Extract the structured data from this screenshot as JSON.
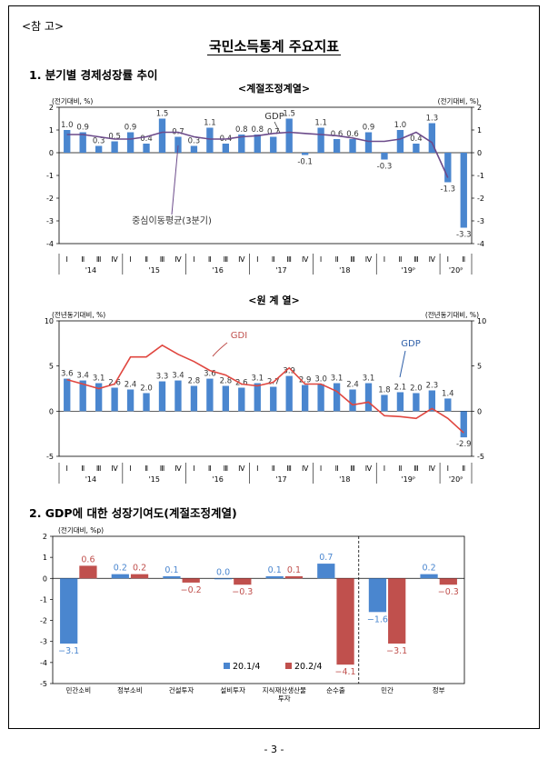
{
  "header": {
    "reference_tag": "<참 고>",
    "title": "국민소득통계 주요지표",
    "page_number": "- 3 -"
  },
  "sections": {
    "s1_title": "1. 분기별 경제성장률 추이",
    "s1_sub1": "<계절조정계열>",
    "s1_sub2": "<원 계 열>",
    "s2_title": "2. GDP에 대한 성장기여도(계절조정계열)"
  },
  "colors": {
    "bar_blue": "#4a86cf",
    "bar_red": "#c0504d",
    "line_purple": "#6b4a8a",
    "line_red": "#e0463f"
  },
  "chart_data": [
    {
      "type": "bar",
      "title": "<계절조정계열>",
      "unit_left": "(전기대비, %)",
      "unit_right": "(전기대비, %)",
      "ylim": [
        -4,
        2
      ],
      "yticks": [
        -4,
        -3,
        -2,
        -1,
        0,
        1,
        2
      ],
      "quarters": [
        "Ⅰ",
        "Ⅱ",
        "Ⅲ",
        "Ⅳ",
        "Ⅰ",
        "Ⅱ",
        "Ⅲ",
        "Ⅳ",
        "Ⅰ",
        "Ⅱ",
        "Ⅲ",
        "Ⅳ",
        "Ⅰ",
        "Ⅱ",
        "Ⅲ",
        "Ⅳ",
        "Ⅰ",
        "Ⅱ",
        "Ⅲ",
        "Ⅳ",
        "Ⅰ",
        "Ⅱ",
        "Ⅲ",
        "Ⅳ",
        "Ⅰ",
        "Ⅱ"
      ],
      "years": [
        "'14",
        "'15",
        "'16",
        "'17",
        "'18",
        "'19ᴾ",
        "'20ᴾ"
      ],
      "series": [
        {
          "name": "GDP",
          "type": "bar",
          "values": [
            1.0,
            0.9,
            0.3,
            0.5,
            0.9,
            0.4,
            1.5,
            0.7,
            0.3,
            1.1,
            0.4,
            0.8,
            0.8,
            0.7,
            1.5,
            -0.1,
            1.1,
            0.6,
            0.6,
            0.9,
            -0.3,
            1.0,
            0.4,
            1.3,
            -1.3,
            -3.3
          ],
          "labels": [
            "1.0",
            "0.9",
            "0.3",
            "0.5",
            "0.9",
            "0.4",
            "1.5",
            "0.7",
            "0.3",
            "1.1",
            "0.4",
            "0.8",
            "0.8",
            "0.7",
            "1.5",
            "-0.1",
            "1.1",
            "0.6",
            "0.6",
            "0.9",
            "-0.3",
            "1.0",
            "0.4",
            "1.3",
            "-1.3",
            "-3.3"
          ]
        },
        {
          "name": "중심이동평균(3분기)",
          "type": "line",
          "values": [
            0.8,
            0.8,
            0.7,
            0.6,
            0.6,
            0.7,
            0.9,
            0.9,
            0.7,
            0.6,
            0.6,
            0.7,
            0.75,
            0.85,
            0.9,
            0.85,
            0.8,
            0.75,
            0.65,
            0.5,
            0.5,
            0.6,
            0.9,
            0.45,
            -1.1,
            null
          ]
        }
      ],
      "annotations": [
        "GDP",
        "중심이동평균(3분기)"
      ]
    },
    {
      "type": "bar",
      "title": "<원 계 열>",
      "unit_left": "(전년동기대비, %)",
      "unit_right": "(전년동기대비, %)",
      "ylim": [
        -5,
        10
      ],
      "yticks": [
        -5,
        0,
        5,
        10
      ],
      "series": [
        {
          "name": "GDP",
          "type": "bar",
          "values": [
            3.6,
            3.4,
            3.1,
            2.6,
            2.4,
            2.0,
            3.3,
            3.4,
            2.8,
            3.6,
            2.8,
            2.6,
            3.1,
            2.7,
            3.9,
            2.9,
            3.0,
            3.1,
            2.4,
            3.1,
            1.8,
            2.1,
            2.0,
            2.3,
            1.4,
            -2.9
          ],
          "labels": [
            "3.6",
            "3.4",
            "3.1",
            "2.6",
            "2.4",
            "2.0",
            "3.3",
            "3.4",
            "2.8",
            "3.6",
            "2.8",
            "2.6",
            "3.1",
            "2.7",
            "3.9",
            "2.9",
            "3.0",
            "3.1",
            "2.4",
            "3.1",
            "1.8",
            "2.1",
            "2.0",
            "2.3",
            "1.4",
            "-2.9"
          ]
        },
        {
          "name": "GDI",
          "type": "line",
          "values": [
            3.5,
            3.0,
            2.5,
            3.0,
            6.0,
            6.0,
            7.3,
            6.3,
            5.5,
            4.5,
            4.0,
            3.0,
            2.8,
            3.2,
            4.8,
            3.0,
            3.0,
            2.2,
            0.7,
            1.0,
            -0.5,
            -0.6,
            -0.8,
            0.3,
            -0.8,
            -2.4
          ]
        }
      ],
      "annotations": [
        "GDI",
        "GDP"
      ]
    },
    {
      "type": "bar",
      "title": "2. GDP에 대한 성장기여도(계절조정계열)",
      "unit_left": "(전기대비, %p)",
      "ylim": [
        -5,
        2
      ],
      "yticks": [
        -5,
        -4,
        -3,
        -2,
        -1,
        0,
        1,
        2
      ],
      "categories": [
        "민간소비",
        "정부소비",
        "건설투자",
        "설비투자",
        "지식재산생산물투자",
        "순수출",
        "민간",
        "정부"
      ],
      "categories_display": [
        [
          "민간소비"
        ],
        [
          "정부소비"
        ],
        [
          "건설투자"
        ],
        [
          "설비투자"
        ],
        [
          "지식재산생산물",
          "투자"
        ],
        [
          "순수출"
        ],
        [
          "민간"
        ],
        [
          "정부"
        ]
      ],
      "series": [
        {
          "name": "20.1/4",
          "values": [
            -3.1,
            0.2,
            0.1,
            0.0,
            0.1,
            0.7,
            -1.6,
            0.2
          ],
          "labels": [
            "−3.1",
            "0.2",
            "0.1",
            "0.0",
            "0.1",
            "0.7",
            "−1.6",
            "0.2"
          ]
        },
        {
          "name": "20.2/4",
          "values": [
            0.6,
            0.2,
            -0.2,
            -0.3,
            0.1,
            -4.1,
            -3.1,
            -0.3
          ],
          "labels": [
            "0.6",
            "0.2",
            "−0.2",
            "−0.3",
            "0.1",
            "−4.1",
            "−3.1",
            "−0.3"
          ]
        }
      ],
      "legend": "bottom-center"
    }
  ]
}
